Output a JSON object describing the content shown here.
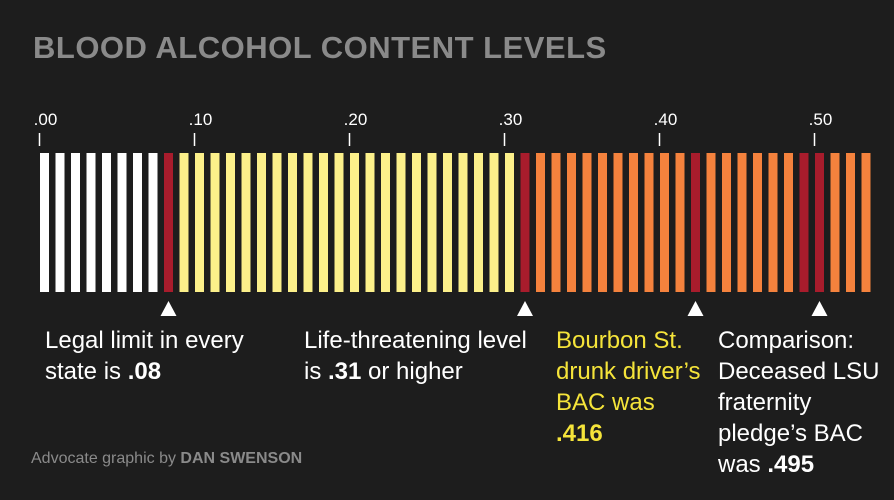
{
  "title": "BLOOD ALCOHOL CONTENT LEVELS",
  "chart_data": {
    "type": "bar",
    "xlim": [
      0,
      0.53
    ],
    "step": 0.01,
    "ticks": [
      {
        "value": 0.0,
        "label": ".00"
      },
      {
        "value": 0.1,
        "label": ".10"
      },
      {
        "value": 0.2,
        "label": ".20"
      },
      {
        "value": 0.3,
        "label": ".30"
      },
      {
        "value": 0.4,
        "label": ".40"
      },
      {
        "value": 0.5,
        "label": ".50"
      }
    ],
    "zones": [
      {
        "from": 0.0,
        "to": 0.08,
        "color": "#ffffff"
      },
      {
        "from": 0.08,
        "to": 0.31,
        "color": "#fcf08a"
      },
      {
        "from": 0.31,
        "to": 0.54,
        "color": "#f4823d"
      }
    ],
    "highlights": [
      {
        "value": 0.08,
        "color": "#a81c2c"
      },
      {
        "value": 0.31,
        "color": "#a81c2c"
      },
      {
        "value": 0.416,
        "color": "#a81c2c"
      },
      {
        "value": 0.495,
        "color": "#a81c2c"
      }
    ]
  },
  "annotations": [
    {
      "pre": "Legal limit in every state is ",
      "value": ".08",
      "post": ""
    },
    {
      "pre": "Life-threatening level is ",
      "value": ".31",
      "post": " or higher"
    },
    {
      "pre": "Bourbon St. drunk driver’s BAC was ",
      "value": ".416",
      "post": ""
    },
    {
      "pre": "Comparison: Deceased LSU fraternity pledge’s BAC was ",
      "value": ".495",
      "post": ""
    }
  ],
  "credit": {
    "prefix": "Advocate graphic by ",
    "name": "DAN SWENSON"
  },
  "colors": {
    "background": "#1d1d1d",
    "muted": "#8a8a8a",
    "highlight_text": "#f5e43a"
  }
}
